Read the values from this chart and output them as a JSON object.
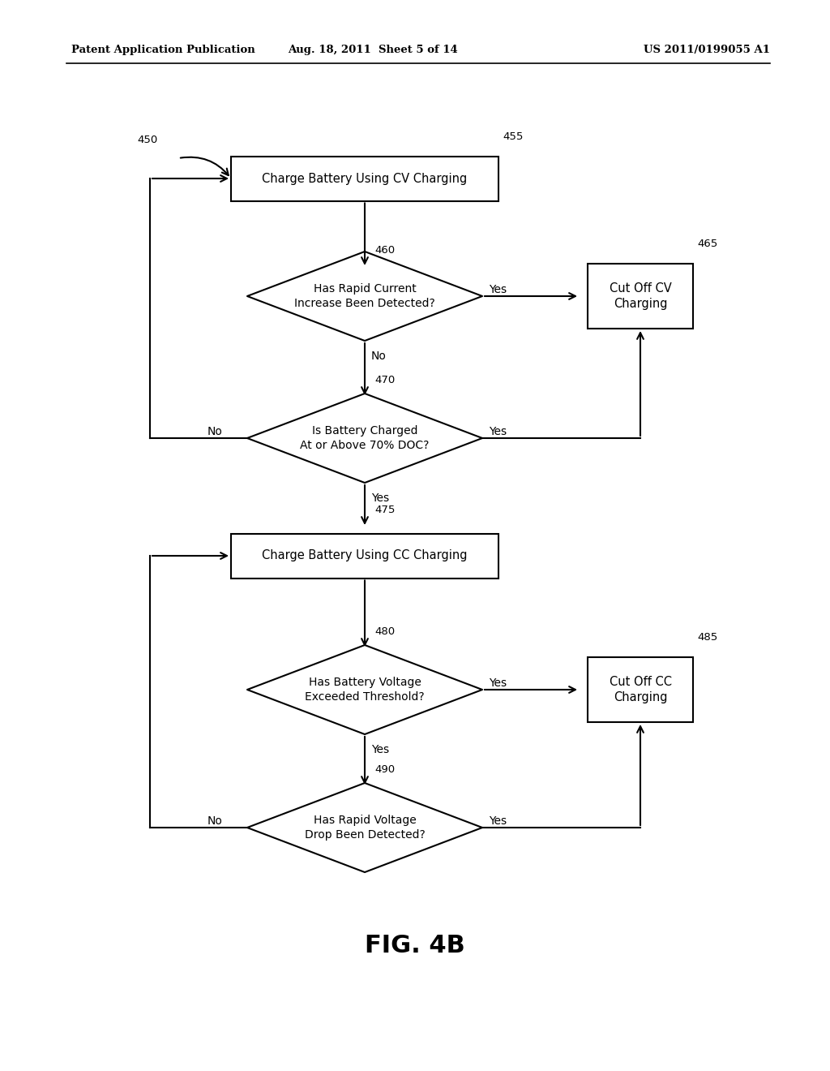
{
  "header_left": "Patent Application Publication",
  "header_mid": "Aug. 18, 2011  Sheet 5 of 14",
  "header_right": "US 2011/0199055 A1",
  "fig_label": "FIG. 4B",
  "node_450": "450",
  "node_455": "455",
  "node_460": "460",
  "node_465": "465",
  "node_470": "470",
  "node_475": "475",
  "node_480": "480",
  "node_485": "485",
  "node_490": "490",
  "box_455_text": "Charge Battery Using CV Charging",
  "box_465_text": "Cut Off CV\nCharging",
  "box_475_text": "Charge Battery Using CC Charging",
  "box_485_text": "Cut Off CC\nCharging",
  "diamond_460_text": "Has Rapid Current\nIncrease Been Detected?",
  "diamond_470_text": "Is Battery Charged\nAt or Above 70% DOC?",
  "diamond_480_text": "Has Battery Voltage\nExceeded Threshold?",
  "diamond_490_text": "Has Rapid Voltage\nDrop Been Detected?",
  "background_color": "#ffffff",
  "line_color": "#000000",
  "text_color": "#000000"
}
